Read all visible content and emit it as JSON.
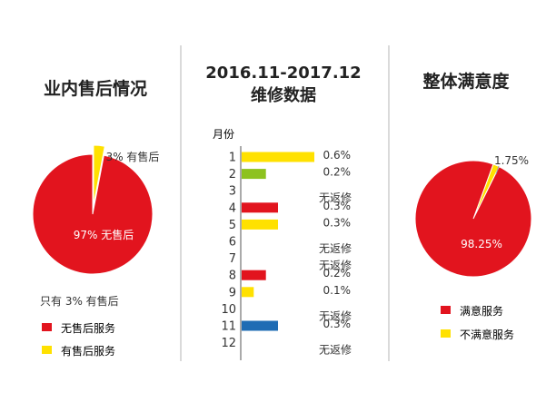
{
  "colors": {
    "red": "#E2141E",
    "yellow": "#FFE100",
    "green": "#8DC21F",
    "blue": "#1F6CB4",
    "divider": "#B5B5B5",
    "axis": "#555555"
  },
  "chart_data": [
    {
      "type": "pie",
      "title": "业内售后情况",
      "slices": [
        {
          "name": "无售后服务",
          "value": 97,
          "label": "97% 无售后",
          "color": "#E2141E",
          "exploded": false
        },
        {
          "name": "有售后服务",
          "value": 3,
          "label": "3% 有售后",
          "color": "#FFE100",
          "exploded": true
        }
      ],
      "note": "只有 3% 有售后",
      "legend": [
        {
          "name": "无售后服务",
          "color": "#E2141E"
        },
        {
          "name": "有售后服务",
          "color": "#FFE100"
        }
      ],
      "legend_position": "bottom-left"
    },
    {
      "type": "bar",
      "orientation": "horizontal",
      "title_lines": [
        "2016.11-2017.12",
        "维修数据"
      ],
      "ylabel": "月份",
      "categories": [
        "1",
        "2",
        "3",
        "4",
        "5",
        "6",
        "7",
        "8",
        "9",
        "10",
        "11",
        "12"
      ],
      "values": [
        0.6,
        0.2,
        0,
        0.3,
        0.3,
        0,
        0,
        0.2,
        0.1,
        0,
        0.3,
        0
      ],
      "labels": [
        "0.6%",
        "0.2%",
        "无返修",
        "0.3%",
        "0.3%",
        "无返修",
        "无返修",
        "0.2%",
        "0.1%",
        "无返修",
        "0.3%",
        "无返修"
      ],
      "colors": [
        "#FFE100",
        "#8DC21F",
        "#FFE100",
        "#E2141E",
        "#FFE100",
        "#FFE100",
        "#FFE100",
        "#E2141E",
        "#FFE100",
        "#FFE100",
        "#1F6CB4",
        "#FFE100"
      ],
      "xlim": [
        0,
        0.6
      ]
    },
    {
      "type": "pie",
      "title": "整体满意度",
      "slices": [
        {
          "name": "满意服务",
          "value": 98.25,
          "label": "98.25%",
          "color": "#E2141E"
        },
        {
          "name": "不满意服务",
          "value": 1.75,
          "label": "1.75%",
          "color": "#FFE100"
        }
      ],
      "legend": [
        {
          "name": "满意服务",
          "color": "#E2141E"
        },
        {
          "name": "不满意服务",
          "color": "#FFE100"
        }
      ],
      "legend_position": "bottom"
    }
  ]
}
